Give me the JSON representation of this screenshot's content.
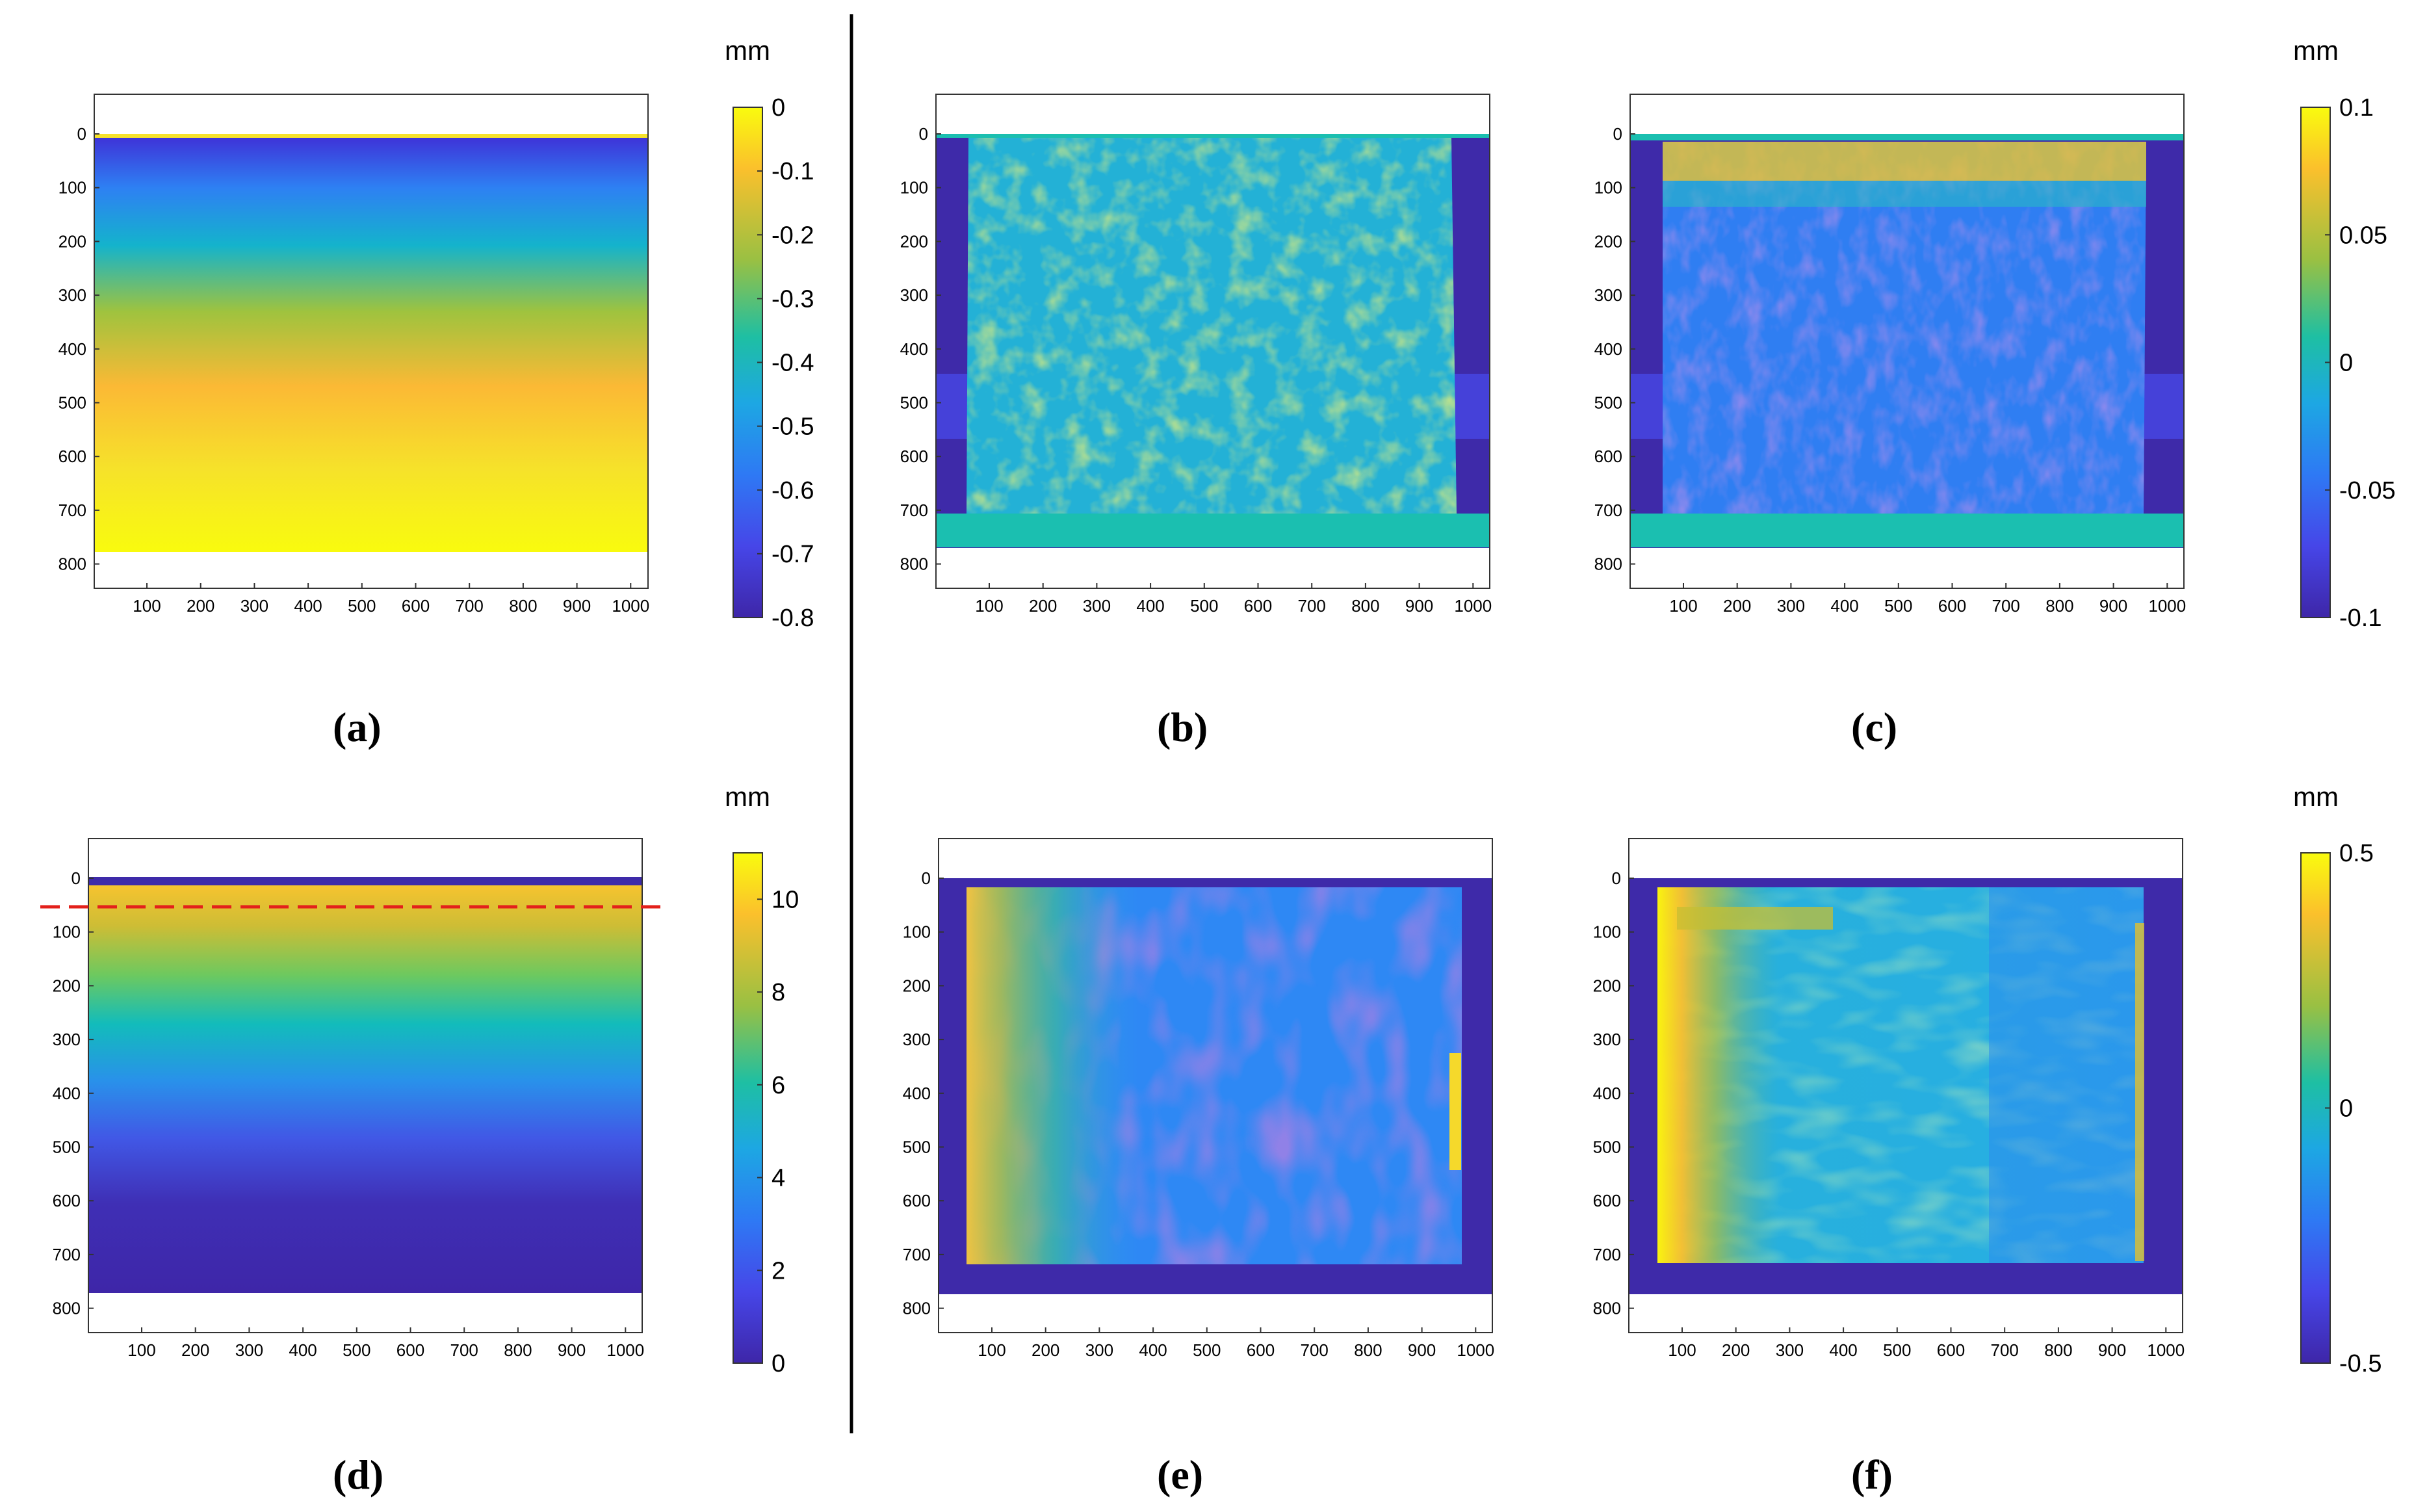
{
  "colormap": [
    "#3e26a8",
    "#4748f0",
    "#2e87f7",
    "#1aa9e0",
    "#0dbfb7",
    "#4ec86f",
    "#b6c033",
    "#fbb935",
    "#f5e329",
    "#f9fb0e"
  ],
  "colors": {
    "frame": "#000000",
    "background": "#ffffff",
    "divider": "#000000",
    "dashed_line": "#e3201b"
  },
  "chart_data": [
    {
      "id": "a",
      "type": "heatmap",
      "caption": "(a)",
      "description_of_field": "vertical gradient: top row near 0 (yellow), ~ -0.75 at y≈20, rising to ~0 toward y≈780",
      "x_ticks": [
        "100",
        "200",
        "300",
        "400",
        "500",
        "600",
        "700",
        "800",
        "900",
        "1000"
      ],
      "y_ticks": [
        "0",
        "100",
        "200",
        "300",
        "400",
        "500",
        "600",
        "700",
        "800"
      ],
      "xlim": [
        0,
        1030
      ],
      "ylim": [
        -80,
        850
      ],
      "colorbar": {
        "unit": "mm",
        "ticks": [
          "0",
          "-0.1",
          "-0.2",
          "-0.3",
          "-0.4",
          "-0.5",
          "-0.6",
          "-0.7",
          "-0.8"
        ],
        "range": [
          -0.8,
          0
        ]
      }
    },
    {
      "id": "b",
      "type": "heatmap",
      "caption": "(b)",
      "description_of_field": "mostly uniform field around -0.03 mm inside specimen, -0.1 mm outside",
      "x_ticks": [
        "100",
        "200",
        "300",
        "400",
        "500",
        "600",
        "700",
        "800",
        "900",
        "1000"
      ],
      "y_ticks": [
        "0",
        "100",
        "200",
        "300",
        "400",
        "500",
        "600",
        "700",
        "800"
      ],
      "xlim": [
        0,
        1030
      ],
      "ylim": [
        -80,
        850
      ]
    },
    {
      "id": "c",
      "type": "heatmap",
      "caption": "(c)",
      "description_of_field": "top band up to 0.1 mm, rest between -0.1 and 0 mm",
      "x_ticks": [
        "100",
        "200",
        "300",
        "400",
        "500",
        "600",
        "700",
        "800",
        "900",
        "1000"
      ],
      "y_ticks": [
        "0",
        "100",
        "200",
        "300",
        "400",
        "500",
        "600",
        "700",
        "800"
      ],
      "xlim": [
        0,
        1030
      ],
      "ylim": [
        -80,
        850
      ],
      "colorbar": {
        "unit": "mm",
        "ticks": [
          "0.1",
          "0.05",
          "0",
          "-0.05",
          "-0.1"
        ],
        "range": [
          -0.1,
          0.1
        ]
      }
    },
    {
      "id": "d",
      "type": "heatmap",
      "caption": "(d)",
      "description_of_field": "vertical gradient ~10 mm near y≈50 decreasing to ~0 at y≈780; dashed line marks y≈50",
      "x_ticks": [
        "100",
        "200",
        "300",
        "400",
        "500",
        "600",
        "700",
        "800",
        "900",
        "1000"
      ],
      "y_ticks": [
        "0",
        "100",
        "200",
        "300",
        "400",
        "500",
        "600",
        "700",
        "800"
      ],
      "xlim": [
        0,
        1030
      ],
      "ylim": [
        -80,
        850
      ],
      "colorbar": {
        "unit": "mm",
        "ticks": [
          "10",
          "8",
          "6",
          "4",
          "2",
          "0"
        ],
        "range": [
          0,
          11
        ]
      }
    },
    {
      "id": "e",
      "type": "heatmap",
      "caption": "(e)",
      "description_of_field": "higher values (0 to 0.3 mm) near left edge, lower values (-0.4 mm) in right-centre",
      "x_ticks": [
        "100",
        "200",
        "300",
        "400",
        "500",
        "600",
        "700",
        "800",
        "900",
        "1000"
      ],
      "y_ticks": [
        "0",
        "100",
        "200",
        "300",
        "400",
        "500",
        "600",
        "700",
        "800"
      ],
      "xlim": [
        0,
        1030
      ],
      "ylim": [
        -80,
        850
      ]
    },
    {
      "id": "f",
      "type": "heatmap",
      "caption": "(f)",
      "description_of_field": "strong positive values (~0.5 mm) along left edge, near -0.15 mm elsewhere",
      "x_ticks": [
        "100",
        "200",
        "300",
        "400",
        "500",
        "600",
        "700",
        "800",
        "900",
        "1000"
      ],
      "y_ticks": [
        "0",
        "100",
        "200",
        "300",
        "400",
        "500",
        "600",
        "700",
        "800"
      ],
      "xlim": [
        0,
        1030
      ],
      "ylim": [
        -80,
        850
      ],
      "colorbar": {
        "unit": "mm",
        "ticks": [
          "0.5",
          "0",
          "-0.5"
        ],
        "range": [
          -0.5,
          0.5
        ]
      }
    }
  ]
}
